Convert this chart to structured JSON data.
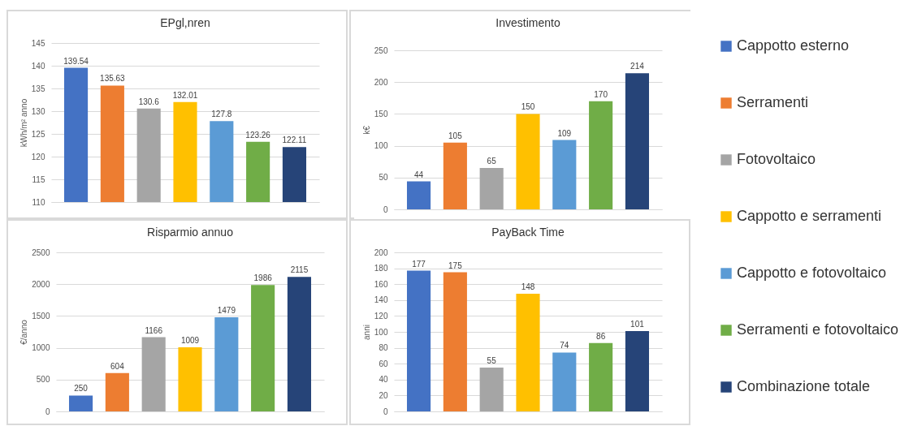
{
  "chart_data": [
    {
      "type": "bar",
      "title": "EPgl,nren",
      "ylabel": "kWh/m² anno",
      "categories": [
        null
      ],
      "series": [
        {
          "color": "#4472c4",
          "values": [
            139.54
          ]
        },
        {
          "color": "#ed7d31",
          "values": [
            135.63
          ]
        },
        {
          "color": "#a5a5a5",
          "values": [
            130.6
          ]
        },
        {
          "color": "#ffc000",
          "values": [
            132.01
          ]
        },
        {
          "color": "#5b9bd5",
          "values": [
            127.8
          ]
        },
        {
          "color": "#70ad47",
          "values": [
            123.26
          ]
        },
        {
          "color": "#264478",
          "values": [
            122.11
          ]
        }
      ],
      "ylim": [
        110,
        145
      ],
      "yticks": [
        110,
        115,
        120,
        125,
        130,
        135,
        140,
        145
      ],
      "grid": "y",
      "data_labels": true,
      "tick_labels": "y"
    },
    {
      "type": "bar",
      "title": "Investimento",
      "ylabel": "k€",
      "categories": [
        null
      ],
      "series": [
        {
          "name": "Cappotto esterno",
          "color": "#4472c4",
          "values": [
            44
          ]
        },
        {
          "name": "Serramenti",
          "color": "#ed7d31",
          "values": [
            105
          ]
        },
        {
          "name": "Fotovoltaico",
          "color": "#a5a5a5",
          "values": [
            65
          ]
        },
        {
          "name": "Cappotto e serramenti",
          "color": "#ffc000",
          "values": [
            150
          ]
        },
        {
          "name": "Cappotto e fotovoltaico",
          "color": "#5b9bd5",
          "values": [
            109
          ]
        },
        {
          "name": "Serramenti e fotovoltaico",
          "color": "#70ad47",
          "values": [
            170
          ]
        },
        {
          "name": "Combinazione totale",
          "color": "#264478",
          "values": [
            214
          ]
        }
      ],
      "ylim": [
        0,
        250
      ],
      "yticks": [
        0,
        50,
        100,
        150,
        200,
        250
      ],
      "grid": "y",
      "data_labels": true,
      "tick_labels": "y",
      "legend": "right"
    },
    {
      "type": "bar",
      "title": "Risparmio annuo",
      "ylabel": "€/anno",
      "categories": [
        null
      ],
      "series": [
        {
          "color": "#4472c4",
          "values": [
            250
          ]
        },
        {
          "color": "#ed7d31",
          "values": [
            604
          ]
        },
        {
          "color": "#a5a5a5",
          "values": [
            1166
          ]
        },
        {
          "color": "#ffc000",
          "values": [
            1009
          ]
        },
        {
          "color": "#5b9bd5",
          "values": [
            1479
          ]
        },
        {
          "color": "#70ad47",
          "values": [
            1986
          ]
        },
        {
          "color": "#264478",
          "values": [
            2115
          ]
        }
      ],
      "ylim": [
        0,
        2500
      ],
      "yticks": [
        0,
        500,
        1000,
        1500,
        2000,
        2500
      ],
      "grid": "y",
      "data_labels": true,
      "tick_labels": "y"
    },
    {
      "type": "bar",
      "title": "PayBack Time",
      "ylabel": "anni",
      "categories": [
        null
      ],
      "series": [
        {
          "color": "#4472c4",
          "values": [
            177
          ]
        },
        {
          "color": "#ed7d31",
          "values": [
            175
          ]
        },
        {
          "color": "#a5a5a5",
          "values": [
            55
          ]
        },
        {
          "color": "#ffc000",
          "values": [
            148
          ]
        },
        {
          "color": "#5b9bd5",
          "values": [
            74
          ]
        },
        {
          "color": "#70ad47",
          "values": [
            86
          ]
        },
        {
          "color": "#264478",
          "values": [
            101
          ]
        }
      ],
      "ylim": [
        0,
        200
      ],
      "yticks": [
        0,
        20,
        40,
        60,
        80,
        100,
        120,
        140,
        160,
        180,
        200
      ],
      "grid": "y",
      "data_labels": true,
      "tick_labels": "y"
    }
  ]
}
